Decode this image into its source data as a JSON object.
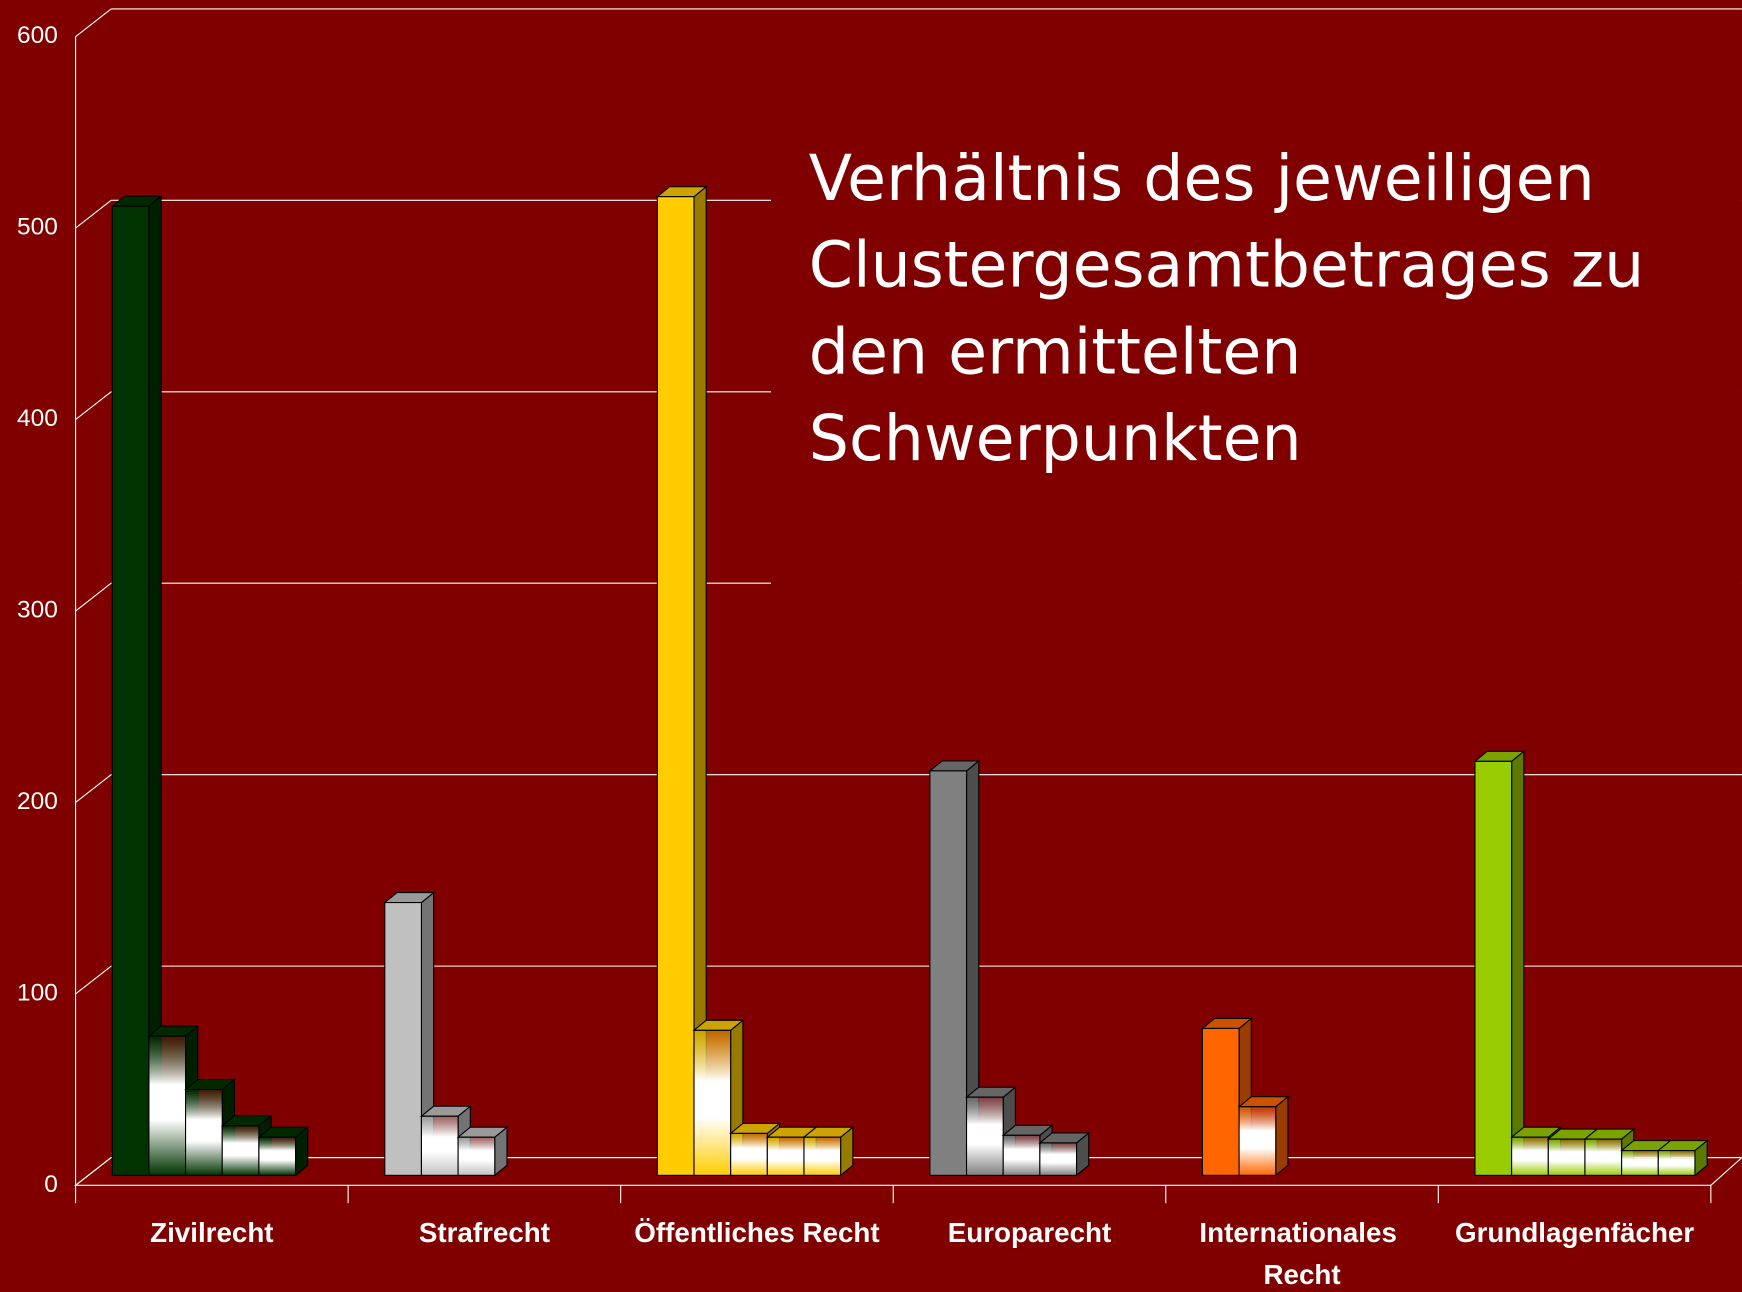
{
  "chart_data": {
    "type": "bar3d",
    "title": "Verhältnis des jeweiligen Clustergesamtbetrages zu den ermittelten Schwerpunkten",
    "categories": [
      "Zivilrecht",
      "Strafrecht",
      "Öffentliches Recht",
      "Europarecht",
      "Internationales Recht",
      "Grundlagenfächer"
    ],
    "values": [
      [
        508,
        73,
        45,
        26,
        20
      ],
      [
        143,
        31,
        20
      ],
      [
        513,
        76,
        22,
        20,
        20
      ],
      [
        212,
        41,
        21,
        17
      ],
      [
        77,
        36
      ],
      [
        217,
        20,
        19,
        19,
        13,
        13
      ]
    ],
    "colors": [
      "#003300",
      "#c0c0c0",
      "#ffcc00",
      "#808080",
      "#ff6600",
      "#99cc00"
    ],
    "ylim": [
      0,
      600
    ],
    "yticks": [
      0,
      100,
      200,
      300,
      400,
      500,
      600
    ],
    "grid": true
  }
}
